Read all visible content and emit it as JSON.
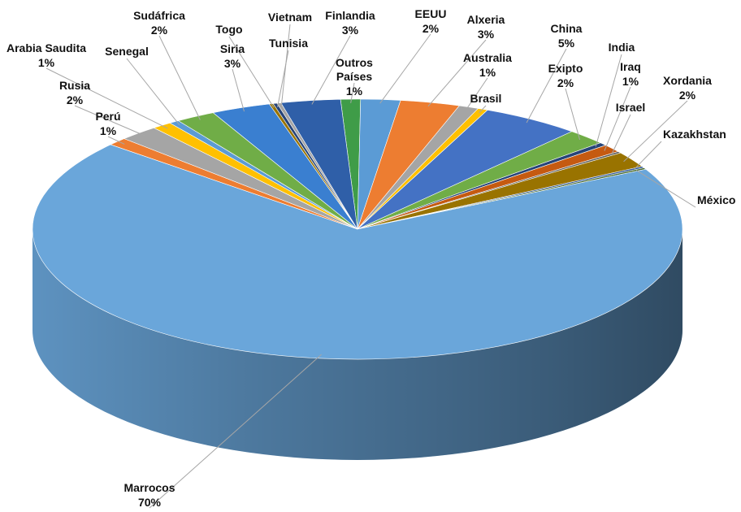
{
  "chart_data": {
    "type": "pie",
    "title": "",
    "three_d": true,
    "legend": "none",
    "slices": [
      {
        "name": "Outros Países",
        "label": "1%",
        "value": 1,
        "color": "#3f9c48"
      },
      {
        "name": "EEUU",
        "label": "2%",
        "value": 2,
        "color": "#5b9bd5"
      },
      {
        "name": "Alxeria",
        "label": "3%",
        "value": 3,
        "color": "#ed7d31"
      },
      {
        "name": "Australia",
        "label": "1%",
        "value": 1,
        "color": "#a5a5a5"
      },
      {
        "name": "Brasil",
        "label": "",
        "value": 0.5,
        "color": "#ffc000"
      },
      {
        "name": "China",
        "label": "5%",
        "value": 5,
        "color": "#4472c4"
      },
      {
        "name": "Exipto",
        "label": "2%",
        "value": 2,
        "color": "#70ad47"
      },
      {
        "name": "India",
        "label": "",
        "value": 0.4,
        "color": "#264478"
      },
      {
        "name": "Iraq",
        "label": "1%",
        "value": 1,
        "color": "#c55a11"
      },
      {
        "name": "Israel",
        "label": "",
        "value": 0.2,
        "color": "#5a5a5a"
      },
      {
        "name": "Xordania",
        "label": "2%",
        "value": 2,
        "color": "#997300"
      },
      {
        "name": "Kazakhstan",
        "label": "",
        "value": 0.2,
        "color": "#2e5597"
      },
      {
        "name": "México",
        "label": "",
        "value": 0.2,
        "color": "#43682b"
      },
      {
        "name": "Marrocos",
        "label": "70%",
        "value": 70,
        "color": "#6aa6da"
      },
      {
        "name": "Perú",
        "label": "1%",
        "value": 1,
        "color": "#ed7d31"
      },
      {
        "name": "Rusia",
        "label": "2%",
        "value": 2,
        "color": "#a5a5a5"
      },
      {
        "name": "Arabia Saudita",
        "label": "1%",
        "value": 1,
        "color": "#ffc000"
      },
      {
        "name": "Senegal",
        "label": "",
        "value": 0.5,
        "color": "#5b9bd5"
      },
      {
        "name": "Sudáfrica",
        "label": "2%",
        "value": 2,
        "color": "#70ad47"
      },
      {
        "name": "Siria",
        "label": "3%",
        "value": 3,
        "color": "#3a7fd0"
      },
      {
        "name": "Togo",
        "label": "",
        "value": 0.2,
        "color": "#997300"
      },
      {
        "name": "Tunisia",
        "label": "",
        "value": 0.2,
        "color": "#264478"
      },
      {
        "name": "Vietnam",
        "label": "",
        "value": 0.2,
        "color": "#a5a5a5"
      },
      {
        "name": "Finlandia",
        "label": "3%",
        "value": 3,
        "color": "#2f5fa8"
      }
    ]
  }
}
